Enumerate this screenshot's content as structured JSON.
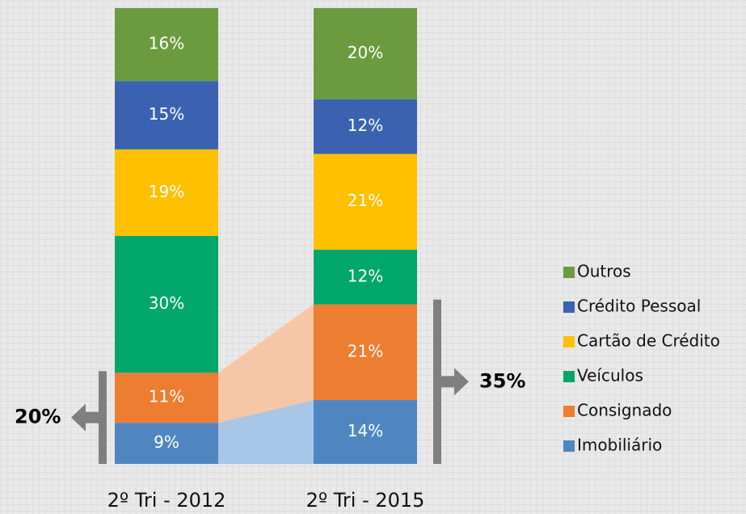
{
  "chart_data": {
    "type": "stacked_bar",
    "categories": [
      "2º Tri - 2012",
      "2º Tri - 2015"
    ],
    "series": [
      {
        "name": "Imobiliário",
        "color": "#4f86c2",
        "values": [
          9,
          14
        ],
        "value_labels": [
          "9%",
          "14%"
        ]
      },
      {
        "name": "Consignado",
        "color": "#ed7d31",
        "values": [
          11,
          21
        ],
        "value_labels": [
          "11%",
          "21%"
        ]
      },
      {
        "name": "Veículos",
        "color": "#00a66c",
        "values": [
          30,
          12
        ],
        "value_labels": [
          "30%",
          "12%"
        ]
      },
      {
        "name": "Cartão de Crédito",
        "color": "#ffc000",
        "values": [
          19,
          21
        ],
        "value_labels": [
          "19%",
          "21%"
        ]
      },
      {
        "name": "Crédito Pessoal",
        "color": "#3a62b0",
        "values": [
          15,
          12
        ],
        "value_labels": [
          "15%",
          "12%"
        ]
      },
      {
        "name": "Outros",
        "color": "#6b9b3e",
        "values": [
          16,
          20
        ],
        "value_labels": [
          "16%",
          "20%"
        ]
      }
    ],
    "annotations": [
      "20%",
      "35%"
    ],
    "legend": "right"
  }
}
